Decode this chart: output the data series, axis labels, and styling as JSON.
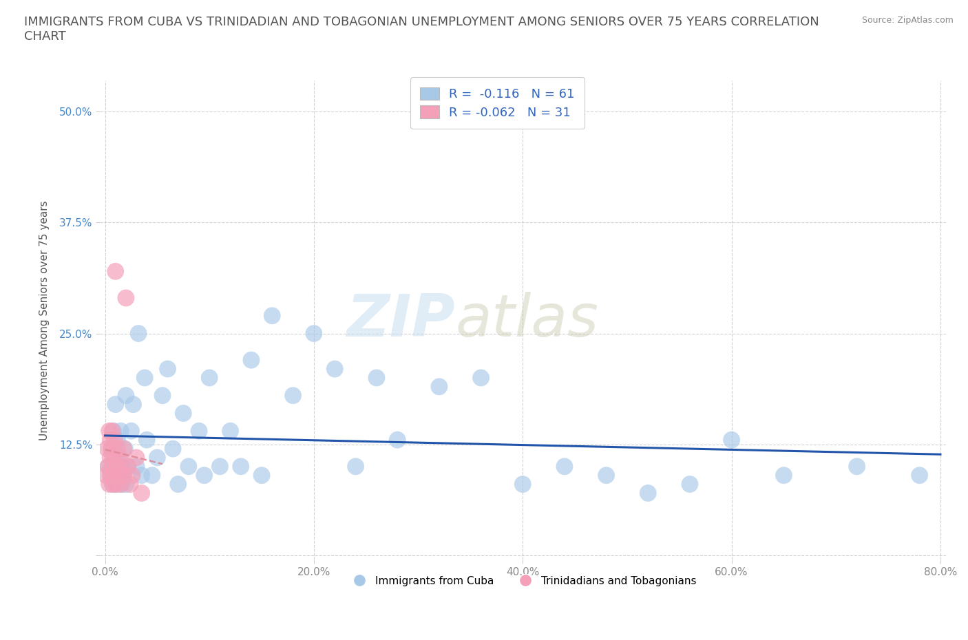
{
  "title": "IMMIGRANTS FROM CUBA VS TRINIDADIAN AND TOBAGONIAN UNEMPLOYMENT AMONG SENIORS OVER 75 YEARS CORRELATION\nCHART",
  "source": "Source: ZipAtlas.com",
  "ylabel": "Unemployment Among Seniors over 75 years",
  "xlabel": "",
  "xlim": [
    -0.005,
    0.805
  ],
  "ylim": [
    -0.005,
    0.535
  ],
  "xticks": [
    0.0,
    0.2,
    0.4,
    0.6,
    0.8
  ],
  "xticklabels": [
    "0.0%",
    "20.0%",
    "40.0%",
    "60.0%",
    "80.0%"
  ],
  "yticks": [
    0.0,
    0.125,
    0.25,
    0.375,
    0.5
  ],
  "yticklabels": [
    "",
    "12.5%",
    "25.0%",
    "37.5%",
    "50.0%"
  ],
  "blue_R": "-0.116",
  "blue_N": "61",
  "pink_R": "-0.062",
  "pink_N": "31",
  "blue_color": "#a8c8e8",
  "pink_color": "#f4a0b8",
  "blue_line_color": "#2255aa",
  "pink_line_color": "#e08898",
  "legend_blue_color": "#a8c8e8",
  "legend_pink_color": "#f4a0b8",
  "watermark_zip": "ZIP",
  "watermark_atlas": "atlas",
  "grid_color": "#cccccc",
  "background_color": "#ffffff",
  "title_fontsize": 13,
  "axis_label_fontsize": 11,
  "tick_fontsize": 11,
  "blue_scatter_x": [
    0.003,
    0.005,
    0.006,
    0.007,
    0.008,
    0.009,
    0.01,
    0.01,
    0.011,
    0.012,
    0.013,
    0.014,
    0.015,
    0.016,
    0.017,
    0.018,
    0.019,
    0.02,
    0.02,
    0.022,
    0.025,
    0.027,
    0.03,
    0.032,
    0.035,
    0.038,
    0.04,
    0.045,
    0.05,
    0.055,
    0.06,
    0.065,
    0.07,
    0.075,
    0.08,
    0.09,
    0.095,
    0.1,
    0.11,
    0.12,
    0.13,
    0.14,
    0.15,
    0.16,
    0.18,
    0.2,
    0.22,
    0.24,
    0.26,
    0.28,
    0.32,
    0.36,
    0.4,
    0.44,
    0.48,
    0.52,
    0.56,
    0.6,
    0.65,
    0.72,
    0.78
  ],
  "blue_scatter_y": [
    0.1,
    0.09,
    0.12,
    0.08,
    0.14,
    0.11,
    0.1,
    0.17,
    0.08,
    0.13,
    0.09,
    0.11,
    0.14,
    0.08,
    0.1,
    0.09,
    0.12,
    0.08,
    0.18,
    0.1,
    0.14,
    0.17,
    0.1,
    0.25,
    0.09,
    0.2,
    0.13,
    0.09,
    0.11,
    0.18,
    0.21,
    0.12,
    0.08,
    0.16,
    0.1,
    0.14,
    0.09,
    0.2,
    0.1,
    0.14,
    0.1,
    0.22,
    0.09,
    0.27,
    0.18,
    0.25,
    0.21,
    0.1,
    0.2,
    0.13,
    0.19,
    0.2,
    0.08,
    0.1,
    0.09,
    0.07,
    0.08,
    0.13,
    0.09,
    0.1,
    0.09
  ],
  "pink_scatter_x": [
    0.001,
    0.002,
    0.003,
    0.004,
    0.004,
    0.005,
    0.005,
    0.006,
    0.006,
    0.007,
    0.007,
    0.008,
    0.008,
    0.009,
    0.009,
    0.01,
    0.01,
    0.011,
    0.012,
    0.013,
    0.014,
    0.015,
    0.016,
    0.017,
    0.018,
    0.02,
    0.022,
    0.024,
    0.026,
    0.03,
    0.035
  ],
  "pink_scatter_y": [
    0.09,
    0.12,
    0.1,
    0.08,
    0.14,
    0.11,
    0.13,
    0.09,
    0.12,
    0.1,
    0.14,
    0.08,
    0.11,
    0.09,
    0.13,
    0.08,
    0.32,
    0.1,
    0.12,
    0.09,
    0.11,
    0.08,
    0.1,
    0.09,
    0.12,
    0.29,
    0.1,
    0.08,
    0.09,
    0.11,
    0.07
  ],
  "blue_line_x0": 0.0,
  "blue_line_x1": 0.8,
  "blue_line_y0": 0.148,
  "blue_line_y1": 0.09,
  "pink_line_x0": 0.0,
  "pink_line_x1": 0.055,
  "pink_line_y0": 0.135,
  "pink_line_y1": 0.08
}
